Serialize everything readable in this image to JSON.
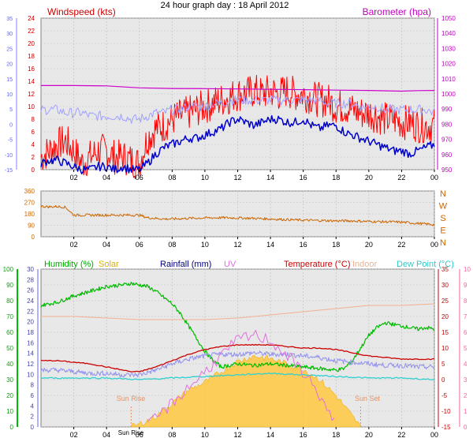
{
  "title": "24 hour graph day : 18 April 2012",
  "x_ticks": [
    "02",
    "04",
    "06",
    "08",
    "10",
    "12",
    "14",
    "16",
    "18",
    "20",
    "22",
    "00"
  ],
  "colors": {
    "plot_bg": "#e8e8e8",
    "grid": "#bdbdbd",
    "wind_label": "#cc0000",
    "baro_label": "#c000c0",
    "windspeed": "#ff0000",
    "gust": "#a0a0ff",
    "avg_wind": "#0000cc",
    "barometer": "#cc00cc",
    "direction": "#cc6600",
    "dir_axis": "#cc6600",
    "humidity": "#00bb00",
    "solar": "#ffc840",
    "rainfall": "#000080",
    "uv": "#e070e0",
    "temperature": "#cc0000",
    "indoor": "#f0b090",
    "dewpoint": "#30d0d0",
    "rain_axis": "#6060ff",
    "temp_axis": "#cc0000",
    "uv_axis": "#ff60a0",
    "sun_label": "#e89060"
  },
  "chart_data": [
    {
      "type": "line",
      "name": "wind-baro",
      "xlim": [
        0,
        24
      ],
      "left_axis": {
        "label": "Windspeed (kts)",
        "range": [
          0,
          24
        ],
        "ticks": [
          0,
          2,
          4,
          6,
          8,
          10,
          12,
          14,
          16,
          18,
          20,
          22,
          24
        ]
      },
      "far_left_axis": {
        "range": [
          -15,
          35
        ],
        "ticks": [
          -15,
          -10,
          -5,
          0,
          5,
          10,
          15,
          20,
          25,
          30,
          35
        ]
      },
      "right_axis": {
        "label": "Barometer (hpa)",
        "range": [
          950,
          1050
        ],
        "ticks": [
          950,
          960,
          970,
          980,
          990,
          1000,
          1010,
          1020,
          1030,
          1040,
          1050
        ]
      },
      "series": [
        {
          "key": "windspeed",
          "axis": "left",
          "x": [
            0,
            0.5,
            1,
            1.5,
            2,
            2.5,
            3,
            3.5,
            4,
            4.5,
            5,
            5.5,
            6,
            6.5,
            7,
            7.5,
            8,
            8.5,
            9,
            9.5,
            10,
            10.5,
            11,
            11.5,
            12,
            12.5,
            13,
            13.5,
            14,
            14.5,
            15,
            15.5,
            16,
            16.5,
            17,
            17.5,
            18,
            18.5,
            19,
            19.5,
            20,
            20.5,
            21,
            21.5,
            22,
            22.5,
            23,
            23.5,
            24
          ],
          "y": [
            2,
            3,
            4,
            4.5,
            3,
            1,
            2,
            3,
            3,
            2,
            2,
            1.5,
            1,
            5,
            6.5,
            7,
            8,
            8.5,
            9,
            9.5,
            10,
            10.5,
            11,
            11.5,
            12,
            12,
            12.5,
            12,
            12.5,
            12,
            12.5,
            12,
            12,
            11.5,
            11,
            11,
            10,
            10,
            9.5,
            9,
            9,
            8.5,
            8,
            8,
            7.5,
            7.5,
            7,
            7,
            7
          ]
        },
        {
          "key": "gust",
          "axis": "left",
          "x": [
            0,
            0.5,
            1,
            1.5,
            2,
            2.5,
            3,
            3.5,
            4,
            4.5,
            5,
            5.5,
            6,
            6.5,
            7,
            7.5,
            8,
            8.5,
            9,
            9.5,
            10,
            10.5,
            11,
            11.5,
            12,
            12.5,
            13,
            13.5,
            14,
            14.5,
            15,
            15.5,
            16,
            16.5,
            17,
            17.5,
            18,
            18.5,
            19,
            19.5,
            20,
            20.5,
            21,
            21.5,
            22,
            22.5,
            23,
            23.5,
            24
          ],
          "y": [
            9.5,
            9.5,
            9.5,
            9,
            9,
            9,
            8.5,
            8.5,
            8.5,
            8.5,
            8.5,
            8,
            8,
            8.5,
            9,
            9,
            9.5,
            9.5,
            10,
            10,
            10,
            10.5,
            10.5,
            11,
            11,
            11,
            11,
            11,
            11,
            11,
            11,
            11,
            11,
            11,
            11,
            10.5,
            10.5,
            10.5,
            10.5,
            10,
            10,
            10,
            9.5,
            9.5,
            9.5,
            9.5,
            9.5,
            9.5,
            9
          ]
        },
        {
          "key": "avg_wind",
          "axis": "left",
          "x": [
            0,
            0.5,
            1,
            1.5,
            2,
            2.5,
            3,
            3.5,
            4,
            4.5,
            5,
            5.5,
            6,
            6.5,
            7,
            7.5,
            8,
            8.5,
            9,
            9.5,
            10,
            10.5,
            11,
            11.5,
            12,
            12.5,
            13,
            13.5,
            14,
            14.5,
            15,
            15.5,
            16,
            16.5,
            17,
            17.5,
            18,
            18.5,
            19,
            19.5,
            20,
            20.5,
            21,
            21.5,
            22,
            22.5,
            23,
            23.5,
            24
          ],
          "y": [
            1,
            1.5,
            1.5,
            1,
            0.5,
            0,
            0,
            0.5,
            0.5,
            0,
            0.5,
            0,
            0,
            1,
            2.5,
            3.5,
            4,
            4.5,
            5,
            5,
            5.5,
            6,
            6.5,
            7.5,
            8,
            7.5,
            7,
            7.5,
            8,
            8,
            7.5,
            7.5,
            8,
            7,
            6.5,
            7,
            7,
            6,
            5.5,
            5,
            4.5,
            4,
            3.5,
            3,
            3,
            2.5,
            3,
            3.5,
            4
          ]
        },
        {
          "key": "barometer",
          "axis": "right",
          "x": [
            0,
            2,
            4,
            6,
            8,
            10,
            12,
            14,
            16,
            18,
            20,
            22,
            23,
            24
          ],
          "y": [
            1005.5,
            1005.5,
            1005.3,
            1004,
            1003.6,
            1003.5,
            1003.3,
            1003,
            1002.8,
            1002.5,
            1002.3,
            1001.8,
            1002.2,
            1002.3
          ]
        }
      ]
    },
    {
      "type": "line",
      "name": "wind-direction",
      "xlim": [
        0,
        24
      ],
      "left_axis": {
        "range": [
          0,
          360
        ],
        "ticks": [
          0,
          90,
          180,
          270,
          360
        ]
      },
      "right_labels": [
        "N",
        "W",
        "S",
        "E",
        "N"
      ],
      "series": [
        {
          "key": "direction",
          "x": [
            0,
            0.5,
            1,
            1.5,
            2,
            2.5,
            3,
            3.5,
            4,
            4.5,
            5,
            5.5,
            6,
            6.5,
            7,
            7.5,
            8,
            9,
            10,
            11,
            12,
            13,
            14,
            15,
            16,
            17,
            18,
            19,
            20,
            21,
            22,
            23,
            24
          ],
          "y": [
            240,
            235,
            238,
            232,
            170,
            170,
            170,
            170,
            170,
            170,
            170,
            170,
            170,
            150,
            145,
            140,
            140,
            145,
            148,
            150,
            148,
            145,
            140,
            135,
            130,
            128,
            125,
            125,
            120,
            118,
            115,
            105,
            95
          ]
        }
      ]
    },
    {
      "type": "line",
      "name": "temp-humidity",
      "xlim": [
        0,
        24
      ],
      "legend": [
        "Humidity (%)",
        "Solar",
        "Rainfall (mm)",
        "UV",
        "Temperature (°C)",
        "Indoor",
        "Dew Point (°C)"
      ],
      "sun_rise_label": "Sun Rise",
      "sun_set_label": "Sun Set",
      "sun_rise_tick": "Sun Rise",
      "sunrise_hour": 5.5,
      "sunset_hour": 19.5,
      "humidity_axis": {
        "range": [
          0,
          100
        ],
        "ticks": [
          0,
          10,
          20,
          30,
          40,
          50,
          60,
          70,
          80,
          90,
          100
        ]
      },
      "rain_axis": {
        "range": [
          0,
          30
        ],
        "ticks": [
          0,
          2,
          4,
          6,
          8,
          10,
          12,
          14,
          16,
          18,
          20,
          22,
          24,
          26,
          28,
          30
        ]
      },
      "temp_axis": {
        "range": [
          -15,
          35
        ],
        "ticks": [
          -15,
          -10,
          -5,
          0,
          5,
          10,
          15,
          20,
          25,
          30,
          35
        ]
      },
      "uv_axis": {
        "range": [
          0,
          10
        ],
        "ticks": [
          0,
          1,
          2,
          3,
          4,
          5,
          6,
          7,
          8,
          9,
          10
        ]
      },
      "series": [
        {
          "key": "humidity",
          "axis": "humidity",
          "x": [
            0,
            1,
            2,
            3,
            4,
            5,
            5.5,
            6,
            6.5,
            7,
            7.5,
            8,
            8.5,
            9,
            9.5,
            10,
            10.5,
            11,
            12,
            13,
            14,
            15,
            16,
            17,
            18,
            18.5,
            19,
            19.5,
            20,
            20.5,
            21,
            22,
            23,
            23.5,
            24
          ],
          "y": [
            77,
            79,
            83,
            86,
            89,
            90,
            91,
            90,
            89,
            86,
            82,
            78,
            72,
            64,
            56,
            48,
            42,
            38,
            40,
            39,
            40,
            39,
            38,
            37,
            36,
            37,
            42,
            50,
            58,
            63,
            66,
            64,
            62,
            63,
            62
          ]
        },
        {
          "key": "indoor",
          "axis": "temp",
          "x": [
            0,
            2,
            4,
            6,
            8,
            10,
            12,
            14,
            16,
            18,
            20,
            22,
            24
          ],
          "y": [
            20,
            20,
            19.5,
            19,
            19,
            19,
            19.5,
            20.5,
            21.5,
            22.5,
            23.5,
            23.5,
            24
          ]
        },
        {
          "key": "temperature",
          "axis": "temp",
          "x": [
            0,
            1,
            2,
            3,
            4,
            5,
            5.5,
            6,
            7,
            8,
            9,
            10,
            11,
            12,
            13,
            14,
            15,
            16,
            17,
            18,
            19,
            20,
            21,
            22,
            23,
            24
          ],
          "y": [
            6,
            6,
            5.5,
            5,
            4,
            3,
            2.5,
            2.5,
            4,
            6,
            8,
            9.5,
            10.5,
            11,
            11,
            11,
            10.5,
            10,
            10,
            9.5,
            8.5,
            7.5,
            7,
            6.5,
            6.5,
            6.5
          ]
        },
        {
          "key": "gust_band",
          "axis": "temp",
          "x": [
            0,
            1,
            2,
            3,
            4,
            5,
            6,
            7,
            8,
            9,
            10,
            11,
            12,
            13,
            14,
            15,
            16,
            17,
            18,
            19,
            20,
            21,
            22,
            23,
            24
          ],
          "y": [
            3,
            3,
            2.5,
            2,
            2,
            1.5,
            1.5,
            3,
            5,
            6.5,
            7.5,
            8,
            8,
            8.5,
            8,
            8,
            7.5,
            7,
            6,
            5.5,
            5,
            4.5,
            4.5,
            4,
            4
          ]
        },
        {
          "key": "dewpoint",
          "axis": "temp",
          "x": [
            0,
            2,
            4,
            6,
            8,
            10,
            12,
            14,
            16,
            18,
            20,
            22,
            24
          ],
          "y": [
            0.5,
            0.5,
            0.5,
            0,
            0.5,
            1,
            1.5,
            2,
            1.5,
            1,
            0.5,
            0.5,
            0
          ]
        },
        {
          "key": "solar",
          "axis": "rain",
          "area": true,
          "x": [
            5.5,
            6,
            7,
            8,
            9,
            10,
            11,
            12,
            13,
            14,
            15,
            16,
            17,
            18,
            19,
            19.5
          ],
          "y": [
            0,
            0.5,
            2,
            4.5,
            7,
            8.5,
            10.5,
            12.5,
            13.5,
            13,
            12,
            11,
            9,
            6,
            2,
            0
          ]
        },
        {
          "key": "uv",
          "axis": "uv",
          "x": [
            6.5,
            7,
            8,
            9,
            10,
            11,
            12,
            13,
            14,
            15,
            16,
            17,
            17.5,
            18
          ],
          "y": [
            0,
            0.5,
            1.5,
            2.5,
            3.5,
            4.5,
            5.5,
            5.8,
            5.5,
            4.5,
            3.5,
            2,
            1,
            0
          ]
        }
      ]
    }
  ]
}
